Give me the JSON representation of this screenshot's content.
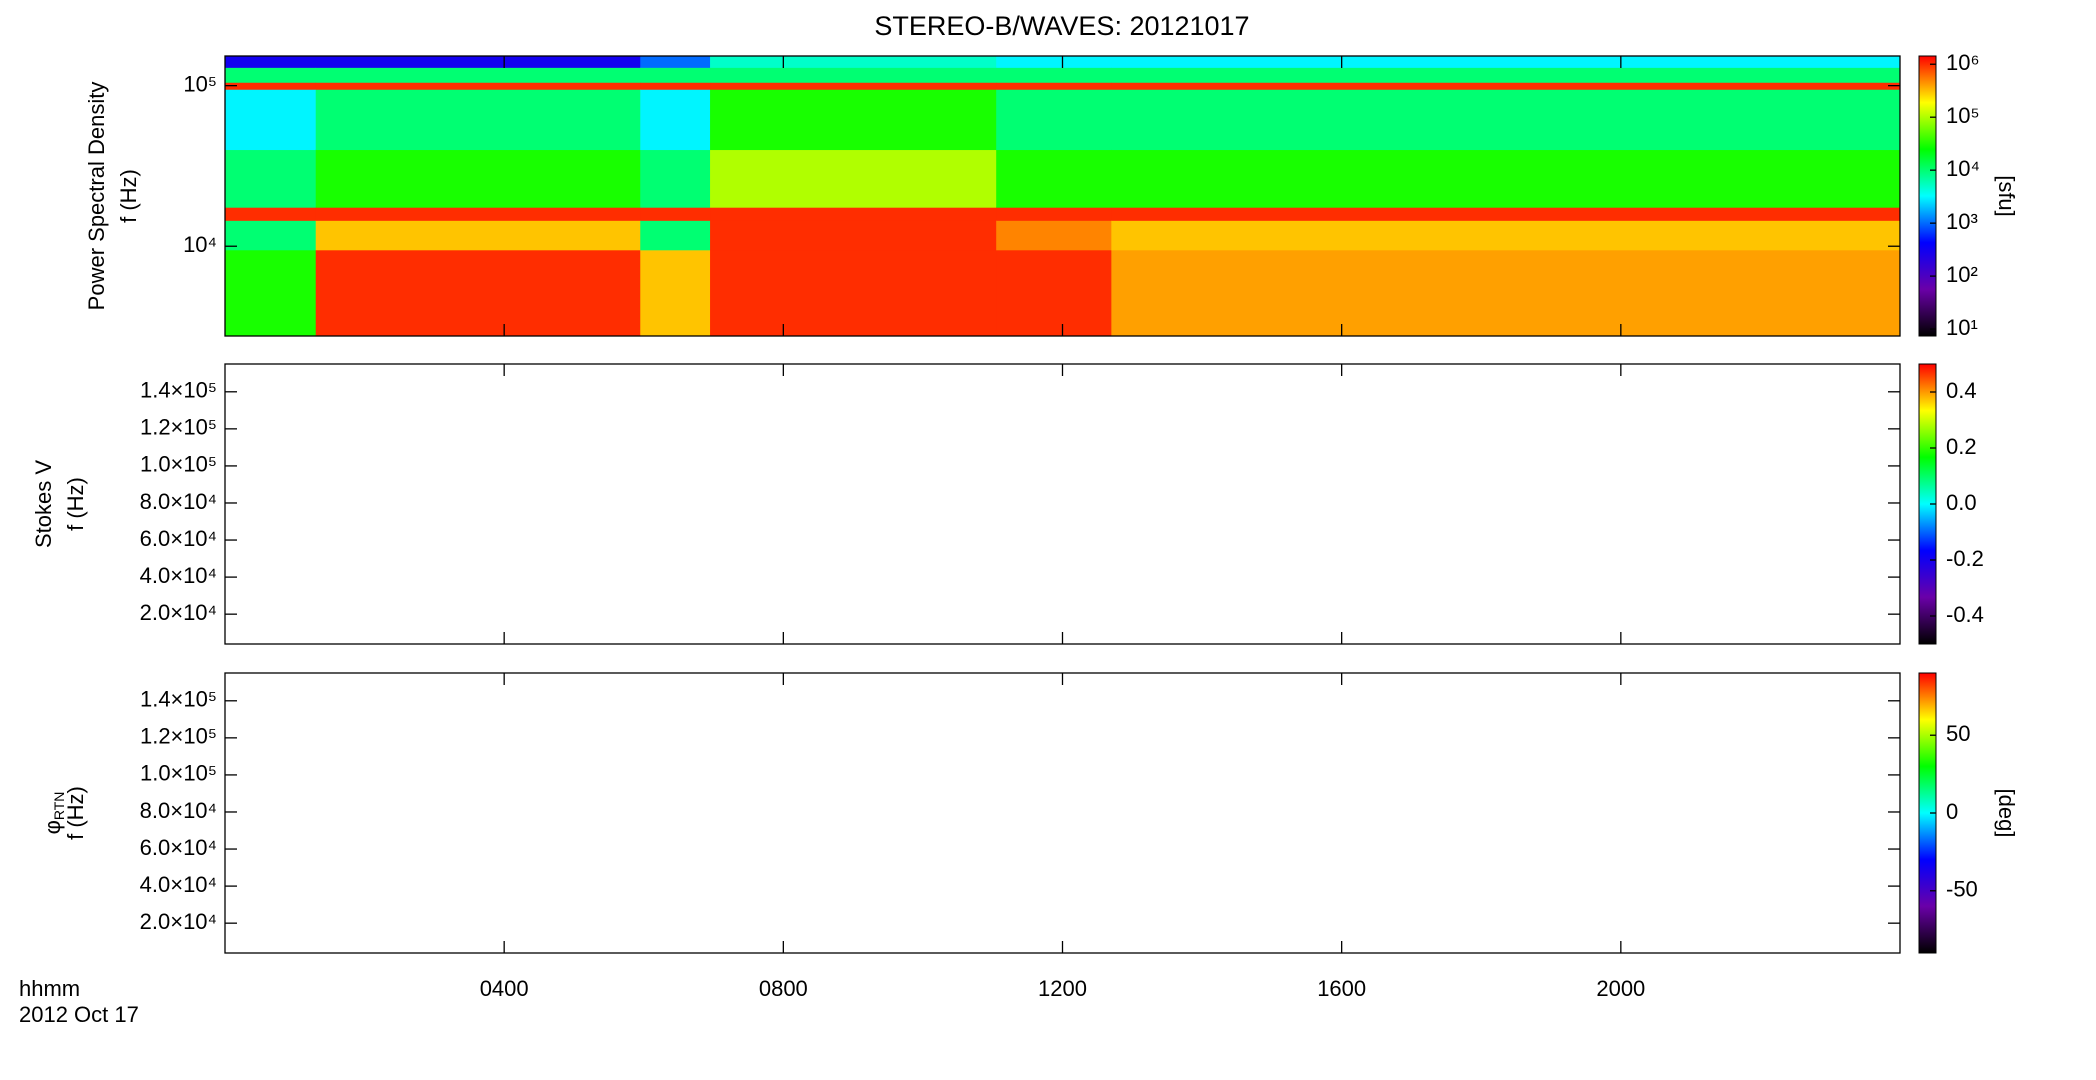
{
  "title": "STEREO-B/WAVES: 20121017",
  "x_label": "hhmm",
  "x_sublabel": "2012 Oct 17",
  "chart_data": [
    {
      "type": "heatmap",
      "ylabel": [
        "Power Spectral Density",
        "f (Hz)"
      ],
      "ylog": true,
      "ylim": [
        2760,
        153000
      ],
      "yticks": [
        {
          "value": 10000,
          "label": "10⁴"
        },
        {
          "value": 100000,
          "label": "10⁵"
        }
      ],
      "x": [
        0,
        1.3,
        5.95,
        6.95,
        11.05,
        12.7,
        24
      ],
      "y": [
        2760,
        9500,
        14500,
        17500,
        40000,
        95000,
        105000,
        130000,
        153000
      ],
      "z": [
        [
          30000,
          10000,
          1000000,
          10000,
          3000,
          1000000,
          10000,
          300
        ],
        [
          1000000,
          300000,
          1000000,
          30000,
          10000,
          1000000,
          10000,
          300
        ],
        [
          300000,
          10000,
          1000000,
          10000,
          3000,
          1000000,
          10000,
          1000
        ],
        [
          1000000,
          1000000,
          1000000,
          100000,
          30000,
          1000000,
          10000,
          5000
        ],
        [
          1000000,
          500000,
          1000000,
          30000,
          10000,
          1000000,
          10000,
          3000
        ],
        [
          400000,
          300000,
          1000000,
          30000,
          10000,
          1000000,
          10000,
          3000
        ]
      ],
      "colorbar": {
        "log": true,
        "lim": [
          7.4,
          1430000
        ],
        "label": "[sfu]",
        "ticks": [
          {
            "value": 10,
            "label": "10¹"
          },
          {
            "value": 100,
            "label": "10²"
          },
          {
            "value": 1000,
            "label": "10³"
          },
          {
            "value": 10000,
            "label": "10⁴"
          },
          {
            "value": 100000,
            "label": "10⁵"
          },
          {
            "value": 1000000,
            "label": "10⁶"
          }
        ]
      },
      "colormap": [
        "#000000",
        "#6a00a8",
        "#0000ff",
        "#00ffff",
        "#00ff00",
        "#ffff00",
        "#ff0000"
      ]
    },
    {
      "type": "heatmap",
      "ylabel": [
        "Stokes V",
        "f (Hz)"
      ],
      "ylim": [
        3900,
        155000
      ],
      "yticks": [
        {
          "value": 20000,
          "label": "2.0×10⁴"
        },
        {
          "value": 40000,
          "label": "4.0×10⁴"
        },
        {
          "value": 60000,
          "label": "6.0×10⁴"
        },
        {
          "value": 80000,
          "label": "8.0×10⁴"
        },
        {
          "value": 100000,
          "label": "1.0×10⁵"
        },
        {
          "value": 120000,
          "label": "1.2×10⁵"
        },
        {
          "value": 140000,
          "label": "1.4×10⁵"
        }
      ],
      "colorbar": {
        "lim": [
          -0.5,
          0.5
        ],
        "ticks": [
          {
            "value": -0.4,
            "label": "-0.4"
          },
          {
            "value": -0.2,
            "label": "-0.2"
          },
          {
            "value": 0,
            "label": "0.0"
          },
          {
            "value": 0.2,
            "label": "0.2"
          },
          {
            "value": 0.4,
            "label": "0.4"
          }
        ]
      },
      "colormap": [
        "#000000",
        "#6a00a8",
        "#0000ff",
        "#00ffff",
        "#00ff00",
        "#ffff00",
        "#ff0000"
      ]
    },
    {
      "type": "heatmap",
      "ylabel": [
        {
          "text": "φ",
          "sub": "RTN"
        },
        "f (Hz)"
      ],
      "ylim": [
        3900,
        155000
      ],
      "yticks": [
        {
          "value": 20000,
          "label": "2.0×10⁴"
        },
        {
          "value": 40000,
          "label": "4.0×10⁴"
        },
        {
          "value": 60000,
          "label": "6.0×10⁴"
        },
        {
          "value": 80000,
          "label": "8.0×10⁴"
        },
        {
          "value": 100000,
          "label": "1.0×10⁵"
        },
        {
          "value": 120000,
          "label": "1.2×10⁵"
        },
        {
          "value": 140000,
          "label": "1.4×10⁵"
        }
      ],
      "xlim": [
        0,
        24
      ],
      "xticks": [
        {
          "value": 4,
          "label": "0400"
        },
        {
          "value": 8,
          "label": "0800"
        },
        {
          "value": 12,
          "label": "1200"
        },
        {
          "value": 16,
          "label": "1600"
        },
        {
          "value": 20,
          "label": "2000"
        }
      ],
      "colorbar": {
        "lim": [
          -90,
          90
        ],
        "label": "[deg]",
        "ticks": [
          -50,
          0,
          50
        ]
      },
      "colormap": [
        "#000000",
        "#6a00a8",
        "#0000ff",
        "#00ffff",
        "#00ff00",
        "#ffff00",
        "#ff0000"
      ]
    }
  ]
}
